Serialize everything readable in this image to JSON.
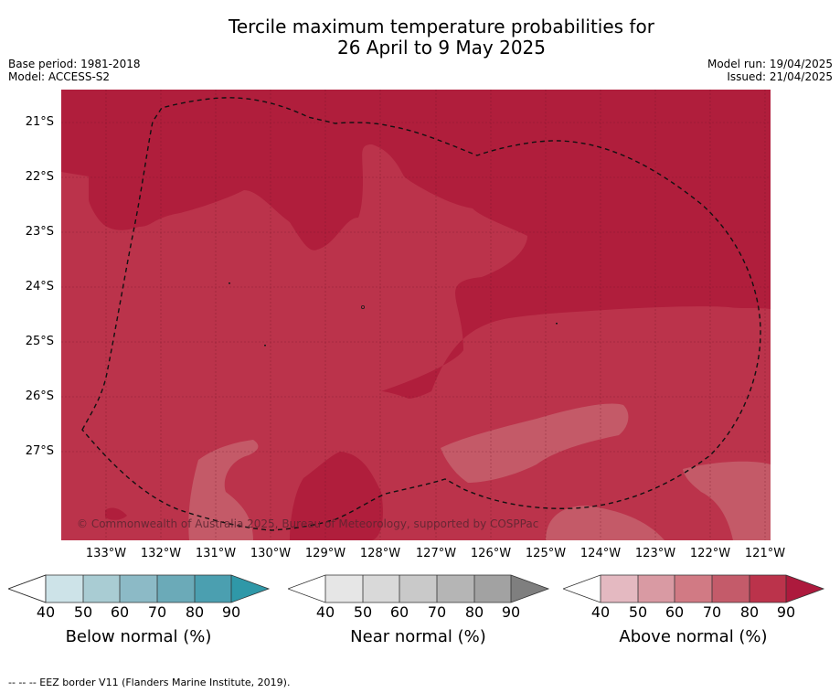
{
  "title_line1": "Tercile maximum temperature probabilities for",
  "title_line2": "26 April to 9 May 2025",
  "base_period": "Base period: 1981-2018",
  "model": "Model: ACCESS-S2",
  "model_run": "Model run: 19/04/2025",
  "issued": "Issued: 21/04/2025",
  "credit": "© Commonwealth of Australia 2025, Bureau of Meteorology, supported by COSPPac",
  "lat_labels": [
    "21°S",
    "22°S",
    "23°S",
    "24°S",
    "25°S",
    "26°S",
    "27°S"
  ],
  "lon_labels": [
    "133°W",
    "132°W",
    "131°W",
    "130°W",
    "129°W",
    "128°W",
    "127°W",
    "126°W",
    "125°W",
    "124°W",
    "123°W",
    "122°W",
    "121°W"
  ],
  "colorbars": [
    {
      "label": "Below normal (%)",
      "ticks": [
        "40",
        "50",
        "60",
        "70",
        "80",
        "90"
      ],
      "colors": [
        "#ffffff",
        "#cde3e8",
        "#a9ccd3",
        "#8cbac6",
        "#6baab8",
        "#4b9fb0",
        "#2f98a8"
      ]
    },
    {
      "label": "Near normal (%)",
      "ticks": [
        "40",
        "50",
        "60",
        "70",
        "80",
        "90"
      ],
      "colors": [
        "#ffffff",
        "#e6e6e6",
        "#d9d9d9",
        "#c9c9c9",
        "#b5b5b5",
        "#a2a2a2",
        "#7f7f7f"
      ]
    },
    {
      "label": "Above normal (%)",
      "ticks": [
        "40",
        "50",
        "60",
        "70",
        "80",
        "90"
      ],
      "colors": [
        "#ffffff",
        "#e4b9c1",
        "#d99aa3",
        "#d17a84",
        "#c45b6a",
        "#bb334b",
        "#ad1a3d"
      ]
    }
  ],
  "footnote": "--  --  -- EEZ border V11 (Flanders Marine Institute, 2019).",
  "map_colors": {
    "above_70_80": "#bb334b",
    "above_80_90": "#b01e3c",
    "above_60_70": "#c45a68"
  }
}
